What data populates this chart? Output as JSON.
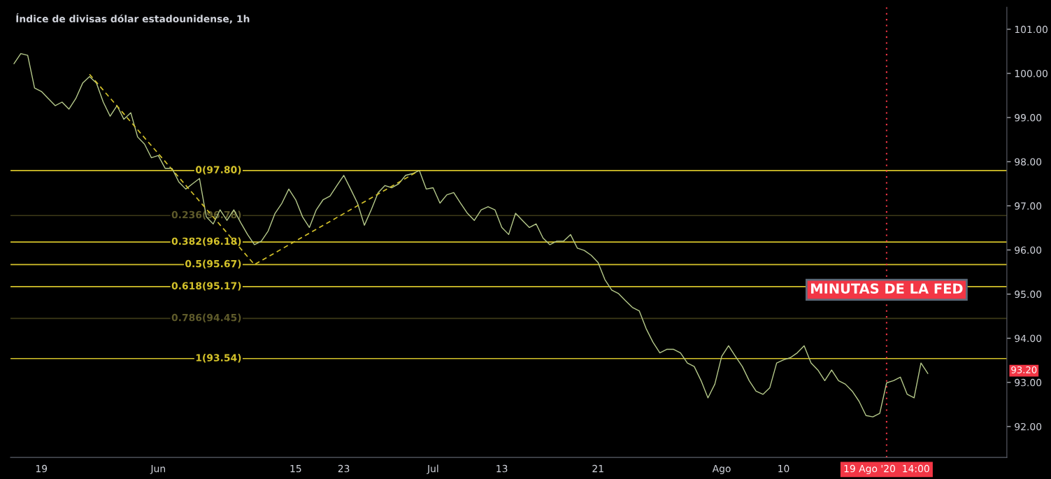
{
  "chart_data": {
    "type": "line",
    "title": "Índice de divisas dólar estadounidense, 1h",
    "categories": [
      null,
      null,
      null,
      null,
      "19",
      null,
      null,
      null,
      null,
      null,
      null,
      null,
      null,
      null,
      null,
      null,
      null,
      null,
      null,
      null,
      null,
      "Jun",
      null,
      null,
      null,
      null,
      null,
      null,
      null,
      null,
      null,
      null,
      null,
      null,
      null,
      null,
      null,
      null,
      null,
      null,
      null,
      "15",
      null,
      null,
      null,
      null,
      null,
      null,
      "23",
      null,
      null,
      null,
      null,
      null,
      null,
      null,
      null,
      null,
      null,
      null,
      null,
      "Jul",
      null,
      null,
      null,
      null,
      null,
      null,
      null,
      null,
      null,
      "13",
      null,
      null,
      null,
      null,
      null,
      null,
      null,
      null,
      null,
      null,
      null,
      null,
      null,
      "21",
      null,
      null,
      null,
      null,
      null,
      null,
      null,
      null,
      null,
      null,
      null,
      null,
      null,
      null,
      null,
      null,
      null,
      "Ago",
      null,
      null,
      null,
      null,
      null,
      null,
      null,
      null,
      "10",
      null,
      null,
      null,
      null,
      null,
      null,
      null,
      null,
      null,
      null,
      null,
      null,
      null,
      null,
      "19 Ago '20  14:00",
      null,
      null,
      null,
      null,
      null,
      null,
      null,
      null,
      null,
      null,
      null,
      null,
      null,
      null,
      null,
      null,
      null
    ],
    "ylim": [
      91.3,
      101.5
    ],
    "yticks": [
      {
        "value": 92,
        "label": "92.00"
      },
      {
        "value": 93,
        "label": "93.00"
      },
      {
        "value": 94,
        "label": "94.00"
      },
      {
        "value": 95,
        "label": "95.00"
      },
      {
        "value": 96,
        "label": "96.00"
      },
      {
        "value": 97,
        "label": "97.00"
      },
      {
        "value": 98,
        "label": "98.00"
      },
      {
        "value": 99,
        "label": "99.00"
      },
      {
        "value": 100,
        "label": "100.00"
      },
      {
        "value": 101,
        "label": "101.00"
      }
    ],
    "grid": false,
    "legend": false,
    "marker": "none",
    "series": [
      {
        "color": "#b5c98a",
        "line_style": "solid",
        "values": [
          100.22,
          100.45,
          100.41,
          99.67,
          99.59,
          99.43,
          99.27,
          99.35,
          99.19,
          99.43,
          99.78,
          99.93,
          99.78,
          99.35,
          99.03,
          99.27,
          98.96,
          99.11,
          98.56,
          98.4,
          98.09,
          98.14,
          97.85,
          97.85,
          97.54,
          97.38,
          97.5,
          97.62,
          96.75,
          96.59,
          96.91,
          96.67,
          96.91,
          96.62,
          96.35,
          96.12,
          96.2,
          96.43,
          96.83,
          97.06,
          97.38,
          97.14,
          96.75,
          96.51,
          96.91,
          97.14,
          97.22,
          97.46,
          97.69,
          97.38,
          97.06,
          96.56,
          96.91,
          97.3,
          97.46,
          97.41,
          97.5,
          97.69,
          97.73,
          97.8,
          97.38,
          97.41,
          97.06,
          97.25,
          97.3,
          97.06,
          96.83,
          96.67,
          96.91,
          96.98,
          96.91,
          96.51,
          96.35,
          96.83,
          96.67,
          96.51,
          96.59,
          96.27,
          96.12,
          96.2,
          96.2,
          96.35,
          96.04,
          95.99,
          95.88,
          95.72,
          95.33,
          95.09,
          95.01,
          94.85,
          94.7,
          94.62,
          94.22,
          93.91,
          93.67,
          93.75,
          93.75,
          93.67,
          93.44,
          93.36,
          93.04,
          92.65,
          92.96,
          93.59,
          93.83,
          93.59,
          93.36,
          93.04,
          92.8,
          92.73,
          92.88,
          93.44,
          93.51,
          93.56,
          93.67,
          93.83,
          93.44,
          93.28,
          93.04,
          93.28,
          93.04,
          92.96,
          92.8,
          92.57,
          92.25,
          92.22,
          92.3,
          92.99,
          93.04,
          93.12,
          92.73,
          92.65,
          93.44,
          93.2,
          null,
          null,
          null,
          null,
          null,
          null,
          null,
          null,
          null,
          null,
          null
        ]
      },
      {
        "color": "#d4c22a",
        "line_style": "dashed",
        "values": [
          null,
          null,
          null,
          null,
          null,
          null,
          null,
          null,
          null,
          null,
          null,
          99.98,
          null,
          null,
          null,
          null,
          null,
          null,
          null,
          null,
          null,
          null,
          null,
          null,
          null,
          null,
          null,
          null,
          null,
          null,
          null,
          null,
          null,
          null,
          null,
          95.67,
          null,
          null,
          null,
          null,
          null,
          null,
          null,
          null,
          null,
          null,
          null,
          null,
          null,
          null,
          null,
          null,
          null,
          null,
          null,
          null,
          null,
          null,
          null,
          97.8,
          null,
          null,
          null,
          null,
          null,
          null,
          null,
          null,
          null,
          null,
          null,
          null,
          null,
          null,
          null,
          null,
          null,
          null,
          null,
          null,
          null,
          null,
          null,
          null,
          null,
          null,
          null,
          null,
          null,
          null,
          null,
          null,
          null,
          null,
          null,
          null,
          null,
          null,
          null,
          null,
          null,
          null,
          null,
          null,
          null,
          null,
          null,
          null,
          null,
          null,
          null,
          null,
          null,
          null,
          null,
          null,
          null,
          null,
          null,
          null,
          null,
          null,
          null,
          null,
          null,
          null,
          null,
          null,
          null,
          null,
          null,
          null,
          null,
          null,
          null,
          null,
          null,
          null,
          null,
          null,
          null,
          null,
          null,
          null,
          null
        ]
      }
    ],
    "ref_lines": [
      {
        "axis": "y",
        "value": 97.8,
        "label": "0(97.80)",
        "color": "#d4c22a"
      },
      {
        "axis": "y",
        "value": 96.78,
        "label": "0.236(96.78)",
        "color": "#3d3a18"
      },
      {
        "axis": "y",
        "value": 96.18,
        "label": "0.382(96.18)",
        "color": "#d4c22a"
      },
      {
        "axis": "y",
        "value": 95.67,
        "label": "0.5(95.67)",
        "color": "#d4c22a"
      },
      {
        "axis": "y",
        "value": 95.17,
        "label": "0.618(95.17)",
        "color": "#d4c22a"
      },
      {
        "axis": "y",
        "value": 94.45,
        "label": "0.786(94.45)",
        "color": "#3d3a18"
      },
      {
        "axis": "y",
        "value": 93.54,
        "label": "1(93.54)",
        "color": "#d4c22a"
      },
      {
        "axis": "x",
        "value": "19 Ago '20  14:00",
        "label": "MINUTAS DE LA FED",
        "color": "#f23645",
        "line_style": "dotted"
      }
    ],
    "annotations": [
      "93.20"
    ]
  }
}
